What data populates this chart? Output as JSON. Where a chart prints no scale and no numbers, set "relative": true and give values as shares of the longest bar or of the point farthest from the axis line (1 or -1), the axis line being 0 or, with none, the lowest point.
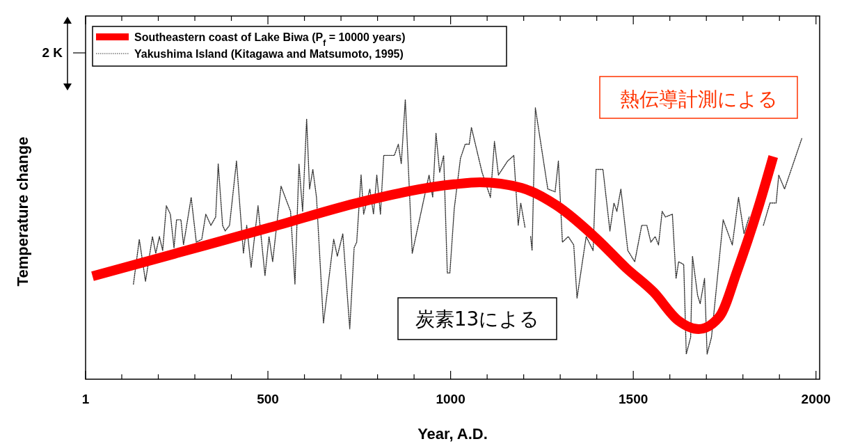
{
  "chart_data": {
    "type": "line",
    "relative": true,
    "xlabel": "Year, A.D.",
    "ylabel": "Temperature change",
    "legend": "top left",
    "xlim": [
      1,
      2010
    ],
    "xticks": [
      1,
      {
        "value": 100,
        "label": null
      },
      {
        "value": 200,
        "label": null
      },
      {
        "value": 300,
        "label": null
      },
      {
        "value": 400,
        "label": null
      },
      500,
      {
        "value": 600,
        "label": null
      },
      {
        "value": 700,
        "label": null
      },
      {
        "value": 800,
        "label": null
      },
      {
        "value": 900,
        "label": null
      },
      1000,
      {
        "value": 1100,
        "label": null
      },
      {
        "value": 1200,
        "label": null
      },
      {
        "value": 1300,
        "label": null
      },
      {
        "value": 1400,
        "label": null
      },
      1500,
      {
        "value": 1600,
        "label": null
      },
      {
        "value": 1700,
        "label": null
      },
      {
        "value": 1800,
        "label": null
      },
      {
        "value": 1900,
        "label": null
      },
      2000
    ],
    "annotations": [
      "2 K",
      "炭素13による",
      "熱伝導計測による"
    ],
    "series": [
      {
        "name": "Southeastern coast of Lake Biwa (P$_{f}$ = 10000 years)",
        "color": "#ff0000",
        "line_style": "solid",
        "x": [
          20,
          243,
          505,
          756,
          1010,
          1080,
          1194,
          1289,
          1403,
          1480,
          1556,
          1622,
          1679,
          1736,
          1784,
          1841,
          1883
        ],
        "values": [
          0.368,
          0.448,
          0.542,
          0.634,
          0.697,
          0.704,
          0.684,
          0.622,
          0.498,
          0.398,
          0.311,
          0.211,
          0.179,
          0.224,
          0.386,
          0.609,
          0.796
        ]
      },
      {
        "name": "Yakushima Island (Kitagawa and Matsumoto, 1995)",
        "color": "#333333",
        "line_style": "dotted",
        "x": [
          132,
          148,
          165,
          184,
          193,
          203,
          212,
          222,
          233,
          243,
          250,
          262,
          269,
          290,
          304,
          319,
          330,
          344,
          357,
          364,
          376,
          383,
          395,
          414,
          433,
          442,
          454,
          473,
          492,
          503,
          513,
          536,
          562,
          574,
          585,
          595,
          606,
          614,
          623,
          633,
          652,
          680,
          690,
          705,
          724,
          736,
          743,
          755,
          762,
          779,
          789,
          798,
          808,
          817,
          846,
          857,
          865,
          876,
          895,
          941,
          951,
          960,
          970,
          981,
          991,
          998,
          1010,
          1027,
          1040,
          1051,
          1057,
          1086,
          1109,
          1120,
          1131,
          1156,
          1173,
          1185,
          1192,
          1204,
          1210,
          1219,
          1223,
          1232,
          1266,
          1286,
          1295,
          1306,
          1322,
          1337,
          1346,
          1371,
          1390,
          1398,
          1417,
          1436,
          1447,
          1455,
          1466,
          1485,
          1504,
          1523,
          1537,
          1548,
          1560,
          1569,
          1579,
          1588,
          1607,
          1617,
          1624,
          1638,
          1645,
          1657,
          1662,
          1676,
          1683,
          1695,
          1702,
          1714,
          1746,
          1771,
          1788,
          1803,
          1817,
          1836,
          1856,
          1874,
          1891,
          1898,
          1914,
          1961
        ],
        "values": [
          0.34,
          0.5,
          0.35,
          0.51,
          0.45,
          0.51,
          0.46,
          0.62,
          0.59,
          0.47,
          0.57,
          0.57,
          0.48,
          0.65,
          0.49,
          0.5,
          0.59,
          0.55,
          0.58,
          0.77,
          0.55,
          0.53,
          0.55,
          0.78,
          0.45,
          0.55,
          0.4,
          0.62,
          0.37,
          0.51,
          0.42,
          0.69,
          0.6,
          0.34,
          0.77,
          0.6,
          0.93,
          0.68,
          0.75,
          0.65,
          0.2,
          0.5,
          0.44,
          0.52,
          0.18,
          0.47,
          0.49,
          0.73,
          0.59,
          0.68,
          0.59,
          0.73,
          0.59,
          0.8,
          0.8,
          0.84,
          0.77,
          1.0,
          0.45,
          0.73,
          0.65,
          0.88,
          0.74,
          0.8,
          0.38,
          0.38,
          0.61,
          0.79,
          0.84,
          0.84,
          0.9,
          0.74,
          0.65,
          0.85,
          0.73,
          0.78,
          0.8,
          0.55,
          0.63,
          0.54,
          null,
          0.51,
          0.46,
          0.97,
          0.68,
          0.67,
          0.78,
          0.49,
          0.51,
          0.48,
          0.29,
          0.51,
          0.46,
          0.75,
          0.75,
          0.53,
          0.63,
          0.6,
          0.68,
          0.46,
          0.42,
          0.55,
          0.55,
          0.49,
          0.51,
          0.48,
          0.6,
          0.58,
          0.59,
          0.36,
          0.42,
          0.41,
          0.09,
          0.15,
          0.44,
          0.3,
          0.27,
          0.36,
          0.09,
          0.15,
          0.57,
          0.48,
          0.65,
          0.52,
          0.58,
          null,
          0.55,
          0.63,
          0.63,
          0.73,
          0.68,
          0.86
        ]
      }
    ]
  }
}
